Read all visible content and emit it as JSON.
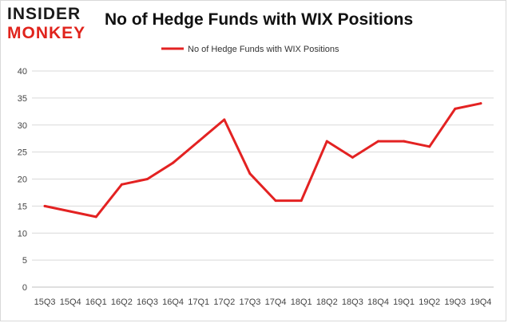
{
  "logo": {
    "line1": "INSIDER",
    "line2": "MONKEY"
  },
  "chart_data": {
    "type": "line",
    "title": "No of Hedge Funds with WIX Positions",
    "xlabel": "",
    "ylabel": "",
    "categories": [
      "15Q3",
      "15Q4",
      "16Q1",
      "16Q2",
      "16Q3",
      "16Q4",
      "17Q1",
      "17Q2",
      "17Q3",
      "17Q4",
      "18Q1",
      "18Q2",
      "18Q3",
      "18Q4",
      "19Q1",
      "19Q2",
      "19Q3",
      "19Q4"
    ],
    "series": [
      {
        "name": "No of Hedge Funds with WIX Positions",
        "values": [
          15,
          14,
          13,
          19,
          20,
          23,
          27,
          31,
          21,
          16,
          16,
          27,
          24,
          27,
          27,
          26,
          33,
          34
        ],
        "color": "#e32222"
      }
    ],
    "ylim": [
      0,
      40
    ],
    "yticks": [
      0,
      5,
      10,
      15,
      20,
      25,
      30,
      35,
      40
    ],
    "grid": true,
    "legend": "top-center"
  }
}
